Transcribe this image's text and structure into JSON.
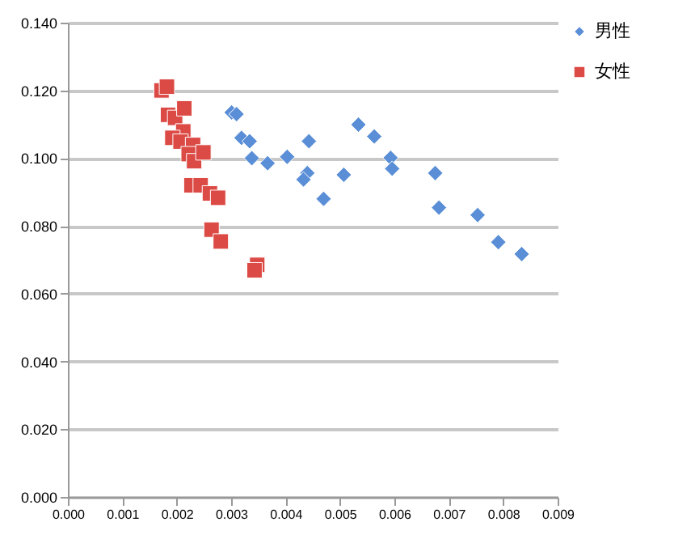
{
  "chart_data": {
    "type": "scatter",
    "xlim": [
      0,
      0.009
    ],
    "ylim": [
      0,
      0.14
    ],
    "xticks": [
      {
        "value": 0,
        "label": "0.000"
      },
      {
        "value": 0.001,
        "label": "0.001"
      },
      {
        "value": 0.002,
        "label": "0.002"
      },
      {
        "value": 0.003,
        "label": "0.003"
      },
      {
        "value": 0.004,
        "label": "0.004"
      },
      {
        "value": 0.005,
        "label": "0.005"
      },
      {
        "value": 0.006,
        "label": "0.006"
      },
      {
        "value": 0.007,
        "label": "0.007"
      },
      {
        "value": 0.008,
        "label": "0.008"
      },
      {
        "value": 0.009,
        "label": "0.009"
      }
    ],
    "yticks": [
      {
        "value": 0,
        "label": "0.000"
      },
      {
        "value": 0.02,
        "label": "0.020"
      },
      {
        "value": 0.04,
        "label": "0.040"
      },
      {
        "value": 0.06,
        "label": "0.060"
      },
      {
        "value": 0.08,
        "label": "0.080"
      },
      {
        "value": 0.1,
        "label": "0.100"
      },
      {
        "value": 0.12,
        "label": "0.120"
      },
      {
        "value": 0.14,
        "label": "0.140"
      }
    ],
    "grid": "y",
    "legend": "right",
    "series": [
      {
        "name": "男性",
        "color": "#5a8ed6",
        "marker": "diamond",
        "x": [
          0.00301,
          0.0031,
          0.00319,
          0.00334,
          0.00338,
          0.00367,
          0.00403,
          0.00443,
          0.0044,
          0.00433,
          0.0047,
          0.00534,
          0.00563,
          0.00593,
          0.00596,
          0.00507,
          0.00675,
          0.00682,
          0.00753,
          0.00791,
          0.00834
        ],
        "values": [
          0.1135,
          0.113,
          0.106,
          0.105,
          0.1,
          0.0985,
          0.1004,
          0.105,
          0.0956,
          0.0937,
          0.088,
          0.1099,
          0.1064,
          0.1001,
          0.0969,
          0.0951,
          0.0956,
          0.0854,
          0.0832,
          0.0752,
          0.0717
        ]
      },
      {
        "name": "女性",
        "color": "#dc4a45",
        "marker": "square",
        "x": [
          0.00172,
          0.00182,
          0.00184,
          0.00197,
          0.00214,
          0.00212,
          0.00192,
          0.00207,
          0.0023,
          0.00222,
          0.00232,
          0.00249,
          0.00227,
          0.00244,
          0.00261,
          0.00276,
          0.00264,
          0.00281,
          0.00348,
          0.00343
        ],
        "values": [
          0.12,
          0.1211,
          0.1128,
          0.1119,
          0.1147,
          0.1079,
          0.106,
          0.1049,
          0.1039,
          0.1012,
          0.0991,
          0.1017,
          0.092,
          0.092,
          0.0896,
          0.0883,
          0.0789,
          0.0754,
          0.0685,
          0.0669
        ]
      }
    ]
  }
}
